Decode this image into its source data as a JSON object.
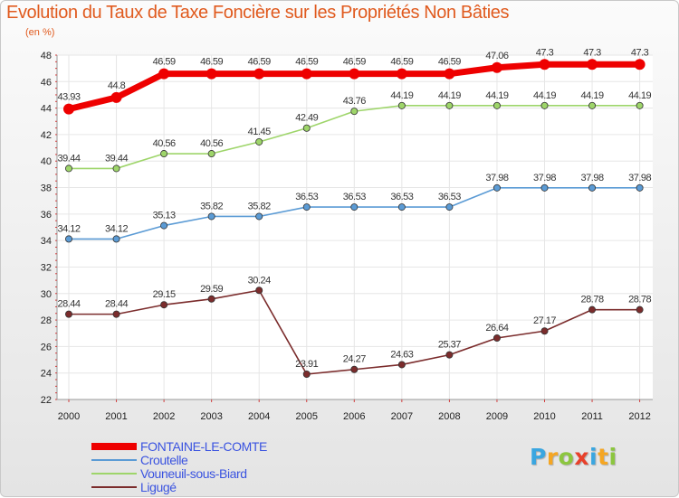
{
  "chart_data": {
    "type": "line",
    "title": "Evolution du Taux de Taxe Foncière sur les Propriétés Non Bâties",
    "subtitle": "(en %)",
    "xlabel": "",
    "ylabel": "",
    "ylim": [
      22,
      48
    ],
    "yticks": [
      22,
      24,
      26,
      28,
      30,
      32,
      34,
      36,
      38,
      40,
      42,
      44,
      46,
      48
    ],
    "categories": [
      "2000",
      "2001",
      "2002",
      "2003",
      "2004",
      "2005",
      "2006",
      "2007",
      "2008",
      "2009",
      "2010",
      "2011",
      "2012"
    ],
    "grid": true,
    "legend_position": "bottom-left",
    "series": [
      {
        "name": "FONTAINE-LE-COMTE",
        "color": "#ee0000",
        "values": [
          43.93,
          44.8,
          46.59,
          46.59,
          46.59,
          46.59,
          46.59,
          46.59,
          46.59,
          47.06,
          47.3,
          47.3,
          47.3
        ],
        "labels": [
          "43.93",
          "44.8",
          "46.59",
          "46.59",
          "46.59",
          "46.59",
          "46.59",
          "46.59",
          "46.59",
          "47.06",
          "47.3",
          "47.3",
          "47.3"
        ]
      },
      {
        "name": "Croutelle",
        "color": "#5b9bd5",
        "values": [
          34.12,
          34.12,
          35.13,
          35.82,
          35.82,
          36.53,
          36.53,
          36.53,
          36.53,
          37.98,
          37.98,
          37.98,
          37.98
        ],
        "labels": [
          "34.12",
          "34.12",
          "35.13",
          "35.82",
          "35.82",
          "36.53",
          "36.53",
          "36.53",
          "36.53",
          "37.98",
          "37.98",
          "37.98",
          "37.98"
        ]
      },
      {
        "name": "Vouneuil-sous-Biard",
        "color": "#9ed56a",
        "values": [
          39.44,
          39.44,
          40.56,
          40.56,
          41.45,
          42.49,
          43.76,
          44.19,
          44.19,
          44.19,
          44.19,
          44.19,
          44.19
        ],
        "labels": [
          "39.44",
          "39.44",
          "40.56",
          "40.56",
          "41.45",
          "42.49",
          "43.76",
          "44.19",
          "44.19",
          "44.19",
          "44.19",
          "44.19",
          "44.19"
        ]
      },
      {
        "name": "Ligugé",
        "color": "#7b2c2c",
        "values": [
          28.44,
          28.44,
          29.15,
          29.59,
          30.24,
          23.91,
          24.27,
          24.63,
          25.37,
          26.64,
          27.17,
          28.78,
          28.78
        ],
        "labels": [
          "28.44",
          "28.44",
          "29.15",
          "29.59",
          "30.24",
          "23.91",
          "24.27",
          "24.63",
          "25.37",
          "26.64",
          "27.17",
          "28.78",
          "28.78"
        ]
      }
    ]
  },
  "legend": {
    "items": [
      {
        "label": "FONTAINE-LE-COMTE",
        "color": "#ee0000",
        "text_color": "#3a53e0"
      },
      {
        "label": "Croutelle",
        "color": "#5b9bd5",
        "text_color": "#3a53e0"
      },
      {
        "label": "Vouneuil-sous-Biard",
        "color": "#9ed56a",
        "text_color": "#3a53e0"
      },
      {
        "label": "Ligugé",
        "color": "#7b2c2c",
        "text_color": "#3a53e0"
      }
    ]
  },
  "logo": {
    "text": "Proxiti",
    "letters": [
      {
        "ch": "P",
        "color": "#3aa6e0"
      },
      {
        "ch": "r",
        "color": "#f5a623"
      },
      {
        "ch": "o",
        "color": "#8cc63f"
      },
      {
        "ch": "x",
        "color": "#e8402a"
      },
      {
        "ch": "i",
        "color": "#3aa6e0"
      },
      {
        "ch": "t",
        "color": "#f5a623"
      },
      {
        "ch": "i",
        "color": "#8cc63f"
      }
    ]
  }
}
